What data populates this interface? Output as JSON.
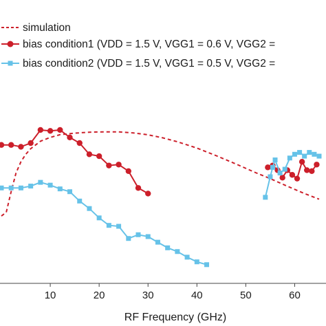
{
  "chart_data": {
    "type": "line",
    "xlabel": "RF Frequency (GHz)",
    "ylabel": "",
    "title": "",
    "xlim": [
      0,
      65
    ],
    "ylim": [
      0,
      100
    ],
    "x_ticks": [
      {
        "value": 10,
        "label": "10"
      },
      {
        "value": 20,
        "label": "20"
      },
      {
        "value": 30,
        "label": "30"
      },
      {
        "value": 40,
        "label": "40"
      },
      {
        "value": 50,
        "label": "50"
      },
      {
        "value": 60,
        "label": "60"
      }
    ],
    "legend_position": "top",
    "series": [
      {
        "name": "simulation",
        "style": "dashed",
        "color": "#cc1f2a",
        "marker": "none",
        "points": [
          [
            0.0,
            36
          ],
          [
            1.0,
            38
          ],
          [
            2.0,
            49
          ],
          [
            3.0,
            59
          ],
          [
            4.0,
            65
          ],
          [
            5.0,
            69
          ],
          [
            6.0,
            72
          ],
          [
            8.0,
            76
          ],
          [
            10.0,
            78
          ],
          [
            12.0,
            79.5
          ],
          [
            15.0,
            80.3
          ],
          [
            18.0,
            80.8
          ],
          [
            21.0,
            81
          ],
          [
            24.0,
            81
          ],
          [
            27.0,
            80.4
          ],
          [
            30.0,
            79.4
          ],
          [
            33.0,
            77.8
          ],
          [
            36.0,
            75.7
          ],
          [
            40.0,
            72.3
          ],
          [
            44.0,
            68.2
          ],
          [
            48.0,
            63.8
          ],
          [
            52.0,
            59.2
          ],
          [
            55.0,
            56
          ],
          [
            58.0,
            52.5
          ],
          [
            62.0,
            48
          ],
          [
            65.0,
            45
          ]
        ]
      },
      {
        "name": "bias condition1 (VDD = 1.5 V, VGG1 = 0.6 V, VGG2 = ",
        "style": "solid",
        "color": "#cc1f2a",
        "marker": "circle",
        "points": [
          [
            0.0,
            74
          ],
          [
            2.0,
            74
          ],
          [
            4.0,
            73
          ],
          [
            6.0,
            75
          ],
          [
            8.0,
            82
          ],
          [
            10.0,
            81.5
          ],
          [
            12.0,
            82
          ],
          [
            14.0,
            78
          ],
          [
            16.0,
            75
          ],
          [
            18.0,
            69
          ],
          [
            20.0,
            68
          ],
          [
            22.0,
            63
          ],
          [
            24.0,
            63.5
          ],
          [
            26.0,
            60
          ],
          [
            28.0,
            51
          ],
          [
            30.0,
            48
          ],
          [
            54.5,
            62
          ],
          [
            55.5,
            63
          ],
          [
            56.5,
            60.5
          ],
          [
            57.5,
            56.5
          ],
          [
            58.5,
            60.5
          ],
          [
            59.5,
            58
          ],
          [
            60.5,
            56
          ],
          [
            61.5,
            65
          ],
          [
            62.5,
            60.5
          ],
          [
            63.5,
            60
          ],
          [
            64.5,
            63.5
          ]
        ]
      },
      {
        "name": "bias condition2 (VDD = 1.5 V, VGG1 = 0.5 V, VGG2 = ",
        "style": "solid",
        "color": "#66c2e8",
        "marker": "square",
        "points": [
          [
            0.0,
            51
          ],
          [
            2.0,
            51
          ],
          [
            4.0,
            51
          ],
          [
            6.0,
            52
          ],
          [
            8.0,
            54
          ],
          [
            10.0,
            52.5
          ],
          [
            12.0,
            50.5
          ],
          [
            14.0,
            49
          ],
          [
            16.0,
            44
          ],
          [
            18.0,
            40
          ],
          [
            20.0,
            35
          ],
          [
            22.0,
            31
          ],
          [
            24.0,
            30.5
          ],
          [
            26.0,
            24
          ],
          [
            28.0,
            26
          ],
          [
            30.0,
            25
          ],
          [
            32.0,
            22
          ],
          [
            34.0,
            19
          ],
          [
            36.0,
            17
          ],
          [
            38.0,
            14
          ],
          [
            40.0,
            11.5
          ],
          [
            42.0,
            10
          ],
          [
            54.0,
            46
          ],
          [
            55.0,
            57
          ],
          [
            55.5,
            62
          ],
          [
            56.0,
            66
          ],
          [
            57.0,
            59
          ],
          [
            58.0,
            61
          ],
          [
            59.0,
            67
          ],
          [
            60.0,
            69
          ],
          [
            61.0,
            70
          ],
          [
            62.0,
            68
          ],
          [
            63.0,
            70
          ],
          [
            64.0,
            69
          ],
          [
            65.0,
            68
          ]
        ]
      }
    ]
  }
}
